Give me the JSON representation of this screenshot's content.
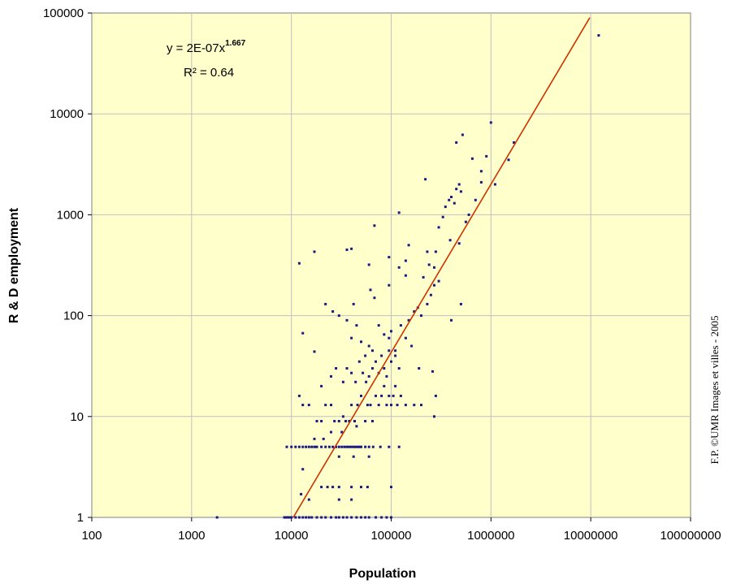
{
  "chart_data": {
    "type": "scatter",
    "title": "",
    "xlabel": "Population",
    "ylabel": "R & D employment",
    "x_scale": "log",
    "y_scale": "log",
    "xlim": [
      100,
      100000000
    ],
    "ylim": [
      1,
      100000
    ],
    "x_ticks": [
      "100",
      "1000",
      "10000",
      "100000",
      "1000000",
      "10000000",
      "100000000"
    ],
    "y_ticks": [
      "1",
      "10",
      "100",
      "1000",
      "10000",
      "100000"
    ],
    "grid": true,
    "colors": {
      "plot_background": "#ffffcc",
      "points": "#1a1a80",
      "trendline": "#cc3300",
      "grid": "#c0c0c0"
    },
    "trendline": {
      "type": "power",
      "coefficient": 2e-07,
      "exponent": 1.667,
      "equation_label": "y = 2E-07x",
      "exponent_label": "1.667",
      "r2_label": "R² = 0.64"
    },
    "annotation": "F.P. ©UMR Images et villes - 2005",
    "points": [
      [
        1800,
        1
      ],
      [
        8500,
        1
      ],
      [
        9000,
        1
      ],
      [
        9500,
        1
      ],
      [
        10000,
        1
      ],
      [
        11000,
        1
      ],
      [
        12000,
        1
      ],
      [
        13000,
        1
      ],
      [
        14000,
        1
      ],
      [
        15000,
        1
      ],
      [
        16000,
        1
      ],
      [
        18000,
        1
      ],
      [
        20000,
        1
      ],
      [
        22000,
        1
      ],
      [
        25000,
        1
      ],
      [
        28000,
        1
      ],
      [
        30000,
        1
      ],
      [
        33000,
        1
      ],
      [
        36000,
        1
      ],
      [
        40000,
        1
      ],
      [
        45000,
        1
      ],
      [
        50000,
        1
      ],
      [
        55000,
        1
      ],
      [
        60000,
        1
      ],
      [
        70000,
        1
      ],
      [
        80000,
        1
      ],
      [
        90000,
        1
      ],
      [
        100000,
        1
      ],
      [
        12500,
        1.7
      ],
      [
        15000,
        1.5
      ],
      [
        30000,
        1.5
      ],
      [
        40000,
        1.5
      ],
      [
        13000,
        3
      ],
      [
        20000,
        2
      ],
      [
        23000,
        2
      ],
      [
        26000,
        2
      ],
      [
        30000,
        2
      ],
      [
        40000,
        2
      ],
      [
        50000,
        2
      ],
      [
        58000,
        2
      ],
      [
        100000,
        2
      ],
      [
        9000,
        5
      ],
      [
        10000,
        5
      ],
      [
        11000,
        5
      ],
      [
        12000,
        5
      ],
      [
        13000,
        5
      ],
      [
        14000,
        5
      ],
      [
        15000,
        5
      ],
      [
        16000,
        5
      ],
      [
        17000,
        5
      ],
      [
        18000,
        5
      ],
      [
        20000,
        5
      ],
      [
        22000,
        5
      ],
      [
        24000,
        5
      ],
      [
        26000,
        5
      ],
      [
        28000,
        5
      ],
      [
        30000,
        5
      ],
      [
        32000,
        5
      ],
      [
        34000,
        5
      ],
      [
        36000,
        5
      ],
      [
        38000,
        5
      ],
      [
        40000,
        5
      ],
      [
        42000,
        5
      ],
      [
        44000,
        5
      ],
      [
        46000,
        5
      ],
      [
        48000,
        5
      ],
      [
        50000,
        5
      ],
      [
        55000,
        5
      ],
      [
        60000,
        5
      ],
      [
        66000,
        5
      ],
      [
        78000,
        5
      ],
      [
        95000,
        5
      ],
      [
        120000,
        5
      ],
      [
        42000,
        4
      ],
      [
        60000,
        4
      ],
      [
        30000,
        4
      ],
      [
        17000,
        6
      ],
      [
        21000,
        6
      ],
      [
        25000,
        7
      ],
      [
        32000,
        7
      ],
      [
        45000,
        8
      ],
      [
        12000,
        16
      ],
      [
        13000,
        13
      ],
      [
        15000,
        13
      ],
      [
        18000,
        9
      ],
      [
        20000,
        9
      ],
      [
        22000,
        13
      ],
      [
        25000,
        13
      ],
      [
        27000,
        9
      ],
      [
        30000,
        9
      ],
      [
        33000,
        10
      ],
      [
        35000,
        9
      ],
      [
        38000,
        9
      ],
      [
        40000,
        13
      ],
      [
        43000,
        9
      ],
      [
        46000,
        13
      ],
      [
        50000,
        16
      ],
      [
        55000,
        9
      ],
      [
        58000,
        13
      ],
      [
        62000,
        13
      ],
      [
        65000,
        9
      ],
      [
        70000,
        16
      ],
      [
        75000,
        13
      ],
      [
        80000,
        16
      ],
      [
        85000,
        20
      ],
      [
        90000,
        13
      ],
      [
        95000,
        16
      ],
      [
        100000,
        13
      ],
      [
        105000,
        16
      ],
      [
        110000,
        20
      ],
      [
        115000,
        13
      ],
      [
        125000,
        16
      ],
      [
        140000,
        13
      ],
      [
        170000,
        13
      ],
      [
        200000,
        13
      ],
      [
        270000,
        10
      ],
      [
        280000,
        16
      ],
      [
        20000,
        20
      ],
      [
        25000,
        25
      ],
      [
        28000,
        30
      ],
      [
        33000,
        22
      ],
      [
        36000,
        30
      ],
      [
        40000,
        27
      ],
      [
        44000,
        22
      ],
      [
        48000,
        35
      ],
      [
        52000,
        27
      ],
      [
        56000,
        22
      ],
      [
        60000,
        25
      ],
      [
        65000,
        30
      ],
      [
        70000,
        35
      ],
      [
        75000,
        27
      ],
      [
        80000,
        40
      ],
      [
        85000,
        30
      ],
      [
        90000,
        25
      ],
      [
        95000,
        45
      ],
      [
        100000,
        35
      ],
      [
        110000,
        40
      ],
      [
        120000,
        30
      ],
      [
        140000,
        60
      ],
      [
        160000,
        50
      ],
      [
        190000,
        30
      ],
      [
        260000,
        28
      ],
      [
        17000,
        44
      ],
      [
        40000,
        60
      ],
      [
        45000,
        80
      ],
      [
        50000,
        55
      ],
      [
        55000,
        40
      ],
      [
        60000,
        50
      ],
      [
        65000,
        45
      ],
      [
        75000,
        80
      ],
      [
        85000,
        65
      ],
      [
        95000,
        60
      ],
      [
        100000,
        70
      ],
      [
        110000,
        45
      ],
      [
        125000,
        80
      ],
      [
        150000,
        90
      ],
      [
        170000,
        110
      ],
      [
        185000,
        120
      ],
      [
        200000,
        100
      ],
      [
        230000,
        130
      ],
      [
        250000,
        160
      ],
      [
        270000,
        200
      ],
      [
        300000,
        220
      ],
      [
        400000,
        90
      ],
      [
        500000,
        130
      ],
      [
        13000,
        67
      ],
      [
        22000,
        130
      ],
      [
        26000,
        110
      ],
      [
        30000,
        100
      ],
      [
        36000,
        90
      ],
      [
        42000,
        130
      ],
      [
        62000,
        180
      ],
      [
        68000,
        150
      ],
      [
        95000,
        200
      ],
      [
        120000,
        300
      ],
      [
        140000,
        250
      ],
      [
        210000,
        240
      ],
      [
        12000,
        330
      ],
      [
        17000,
        430
      ],
      [
        36000,
        450
      ],
      [
        40000,
        460
      ],
      [
        60000,
        320
      ],
      [
        68000,
        780
      ],
      [
        95000,
        380
      ],
      [
        140000,
        350
      ],
      [
        150000,
        500
      ],
      [
        230000,
        430
      ],
      [
        240000,
        320
      ],
      [
        270000,
        300
      ],
      [
        280000,
        430
      ],
      [
        390000,
        560
      ],
      [
        480000,
        520
      ],
      [
        120000,
        1050
      ],
      [
        220000,
        2250
      ],
      [
        300000,
        750
      ],
      [
        330000,
        950
      ],
      [
        350000,
        1200
      ],
      [
        380000,
        1400
      ],
      [
        400000,
        1500
      ],
      [
        430000,
        1300
      ],
      [
        450000,
        1800
      ],
      [
        480000,
        2000
      ],
      [
        500000,
        1700
      ],
      [
        560000,
        850
      ],
      [
        600000,
        1000
      ],
      [
        700000,
        1400
      ],
      [
        800000,
        2100
      ],
      [
        450000,
        5200
      ],
      [
        520000,
        6200
      ],
      [
        650000,
        3600
      ],
      [
        800000,
        2700
      ],
      [
        900000,
        3800
      ],
      [
        1000000,
        8200
      ],
      [
        1100000,
        2000
      ],
      [
        1500000,
        3500
      ],
      [
        1700000,
        5200
      ],
      [
        12000000,
        60000
      ]
    ]
  }
}
